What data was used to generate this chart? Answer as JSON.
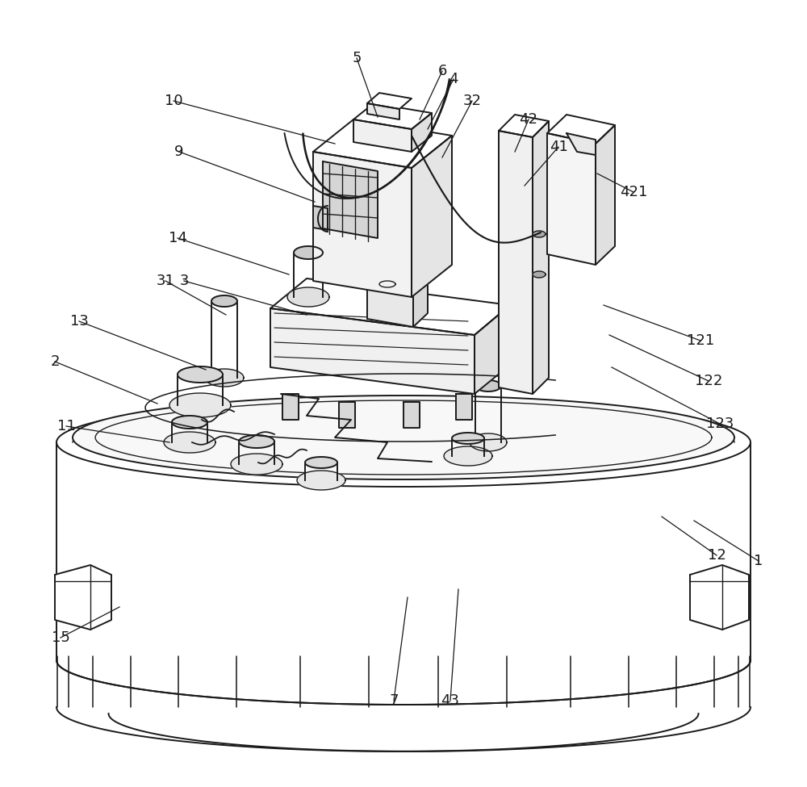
{
  "bg_color": "#ffffff",
  "line_color": "#1a1a1a",
  "lw": 1.4,
  "label_fs": 13,
  "labels": [
    [
      "1",
      940,
      695,
      860,
      645
    ],
    [
      "2",
      68,
      448,
      195,
      500
    ],
    [
      "3",
      228,
      348,
      380,
      390
    ],
    [
      "4",
      562,
      98,
      530,
      160
    ],
    [
      "5",
      442,
      72,
      468,
      145
    ],
    [
      "6",
      548,
      88,
      520,
      148
    ],
    [
      "7",
      488,
      868,
      505,
      740
    ],
    [
      "9",
      222,
      188,
      390,
      250
    ],
    [
      "10",
      215,
      125,
      415,
      178
    ],
    [
      "11",
      82,
      528,
      210,
      548
    ],
    [
      "12",
      888,
      688,
      820,
      640
    ],
    [
      "13",
      98,
      398,
      255,
      458
    ],
    [
      "14",
      220,
      295,
      358,
      340
    ],
    [
      "15",
      75,
      790,
      148,
      752
    ],
    [
      "31",
      205,
      348,
      280,
      390
    ],
    [
      "32",
      585,
      125,
      548,
      195
    ],
    [
      "41",
      692,
      182,
      650,
      230
    ],
    [
      "42",
      655,
      148,
      638,
      188
    ],
    [
      "43",
      558,
      868,
      568,
      730
    ],
    [
      "121",
      868,
      422,
      748,
      378
    ],
    [
      "122",
      878,
      472,
      755,
      415
    ],
    [
      "123",
      892,
      525,
      758,
      455
    ],
    [
      "421",
      785,
      238,
      740,
      215
    ]
  ]
}
